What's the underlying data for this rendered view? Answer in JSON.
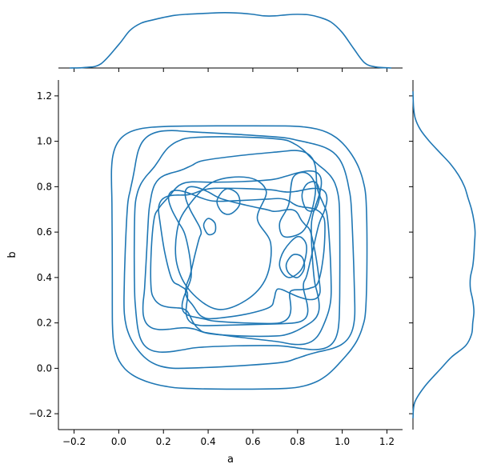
{
  "chart_data": {
    "type": "kde-jointplot",
    "color": "#1f77b4",
    "main": {
      "xlabel": "a",
      "ylabel": "b",
      "xlim": [
        -0.27,
        1.27
      ],
      "ylim": [
        -0.27,
        1.27
      ],
      "xticks": [
        -0.2,
        0.0,
        0.2,
        0.4,
        0.6,
        0.8,
        1.0,
        1.2
      ],
      "yticks": [
        -0.2,
        0.0,
        0.2,
        0.4,
        0.6,
        0.8,
        1.0,
        1.2
      ],
      "xtick_labels": [
        "−0.2",
        "0.0",
        "0.2",
        "0.4",
        "0.6",
        "0.8",
        "1.0",
        "1.2"
      ],
      "ytick_labels": [
        "−0.2",
        "0.0",
        "0.2",
        "0.4",
        "0.6",
        "0.8",
        "1.0",
        "1.2"
      ],
      "contour_levels": [
        {
          "level": 1,
          "shape": "ring",
          "cx": 0.52,
          "cy": 0.5,
          "rx": 0.57,
          "ry": 0.58,
          "wobble": 0.015
        },
        {
          "level": 2,
          "shape": "ring",
          "cx": 0.53,
          "cy": 0.52,
          "rx": 0.51,
          "ry": 0.51,
          "wobble": 0.02
        },
        {
          "level": 3,
          "shape": "ring",
          "cx": 0.53,
          "cy": 0.52,
          "rx": 0.46,
          "ry": 0.46,
          "wobble": 0.025
        },
        {
          "level": 4,
          "shape": "ring",
          "cx": 0.54,
          "cy": 0.52,
          "rx": 0.41,
          "ry": 0.4,
          "wobble": 0.03
        },
        {
          "level": 5,
          "shape": "ring",
          "cx": 0.55,
          "cy": 0.51,
          "rx": 0.36,
          "ry": 0.34,
          "wobble": 0.035
        },
        {
          "level": 6,
          "shape": "ring",
          "cx": 0.56,
          "cy": 0.51,
          "rx": 0.33,
          "ry": 0.3,
          "wobble": 0.04
        },
        {
          "level": 7,
          "shape": "ring",
          "cx": 0.56,
          "cy": 0.5,
          "rx": 0.3,
          "ry": 0.27,
          "wobble": 0.045
        },
        {
          "level": 8,
          "shape": "ring",
          "cx": 0.57,
          "cy": 0.5,
          "rx": 0.27,
          "ry": 0.24,
          "wobble": 0.05
        },
        {
          "level": 9,
          "shape": "blob",
          "points": [
            [
              0.3,
              0.7
            ],
            [
              0.42,
              0.82
            ],
            [
              0.58,
              0.84
            ],
            [
              0.66,
              0.78
            ],
            [
              0.62,
              0.66
            ],
            [
              0.68,
              0.55
            ],
            [
              0.66,
              0.4
            ],
            [
              0.57,
              0.3
            ],
            [
              0.44,
              0.26
            ],
            [
              0.32,
              0.34
            ],
            [
              0.26,
              0.46
            ],
            [
              0.26,
              0.6
            ]
          ]
        },
        {
          "level": 10,
          "shape": "blob",
          "points": [
            [
              0.74,
              0.58
            ],
            [
              0.82,
              0.6
            ],
            [
              0.86,
              0.68
            ],
            [
              0.88,
              0.8
            ],
            [
              0.84,
              0.86
            ],
            [
              0.78,
              0.84
            ],
            [
              0.76,
              0.72
            ],
            [
              0.72,
              0.64
            ]
          ]
        },
        {
          "level": 10,
          "shape": "blob",
          "points": [
            [
              0.74,
              0.52
            ],
            [
              0.8,
              0.58
            ],
            [
              0.84,
              0.54
            ],
            [
              0.82,
              0.44
            ],
            [
              0.76,
              0.4
            ],
            [
              0.72,
              0.45
            ]
          ]
        },
        {
          "level": 11,
          "shape": "blob",
          "points": [
            [
              0.44,
              0.74
            ],
            [
              0.48,
              0.79
            ],
            [
              0.53,
              0.77
            ],
            [
              0.54,
              0.72
            ],
            [
              0.5,
              0.68
            ],
            [
              0.46,
              0.69
            ]
          ]
        },
        {
          "level": 11,
          "shape": "blob",
          "points": [
            [
              0.38,
              0.63
            ],
            [
              0.4,
              0.66
            ],
            [
              0.43,
              0.64
            ],
            [
              0.43,
              0.6
            ],
            [
              0.4,
              0.59
            ]
          ]
        },
        {
          "level": 11,
          "shape": "blob",
          "points": [
            [
              0.82,
              0.76
            ],
            [
              0.84,
              0.81
            ],
            [
              0.88,
              0.82
            ],
            [
              0.9,
              0.77
            ],
            [
              0.88,
              0.7
            ],
            [
              0.84,
              0.7
            ]
          ]
        },
        {
          "level": 11,
          "shape": "blob",
          "points": [
            [
              0.75,
              0.46
            ],
            [
              0.78,
              0.5
            ],
            [
              0.82,
              0.49
            ],
            [
              0.83,
              0.44
            ],
            [
              0.8,
              0.4
            ],
            [
              0.76,
              0.42
            ]
          ]
        }
      ]
    },
    "marginal_x": {
      "x": [
        -0.22,
        -0.15,
        -0.08,
        0.0,
        0.05,
        0.1,
        0.15,
        0.2,
        0.25,
        0.3,
        0.35,
        0.4,
        0.45,
        0.5,
        0.55,
        0.6,
        0.65,
        0.7,
        0.75,
        0.8,
        0.85,
        0.9,
        0.95,
        1.0,
        1.05,
        1.1,
        1.15,
        1.22
      ],
      "density": [
        0.0,
        0.01,
        0.08,
        0.45,
        0.72,
        0.86,
        0.92,
        0.97,
        1.01,
        1.03,
        1.04,
        1.05,
        1.06,
        1.06,
        1.05,
        1.03,
        1.0,
        1.0,
        1.02,
        1.03,
        1.02,
        0.97,
        0.88,
        0.68,
        0.38,
        0.1,
        0.02,
        0.0
      ],
      "ymax": 1.12
    },
    "marginal_y": {
      "y": [
        -0.22,
        -0.15,
        -0.08,
        0.0,
        0.05,
        0.1,
        0.15,
        0.2,
        0.25,
        0.3,
        0.35,
        0.4,
        0.45,
        0.5,
        0.55,
        0.6,
        0.65,
        0.7,
        0.75,
        0.8,
        0.85,
        0.9,
        0.95,
        1.0,
        1.05,
        1.1,
        1.15,
        1.22
      ],
      "density": [
        0.0,
        0.03,
        0.2,
        0.48,
        0.66,
        0.9,
        1.0,
        1.02,
        1.04,
        1.02,
        0.98,
        0.98,
        1.02,
        1.04,
        1.05,
        1.06,
        1.04,
        1.0,
        0.94,
        0.88,
        0.78,
        0.64,
        0.46,
        0.28,
        0.13,
        0.04,
        0.01,
        0.0
      ],
      "xmax": 1.12
    }
  }
}
